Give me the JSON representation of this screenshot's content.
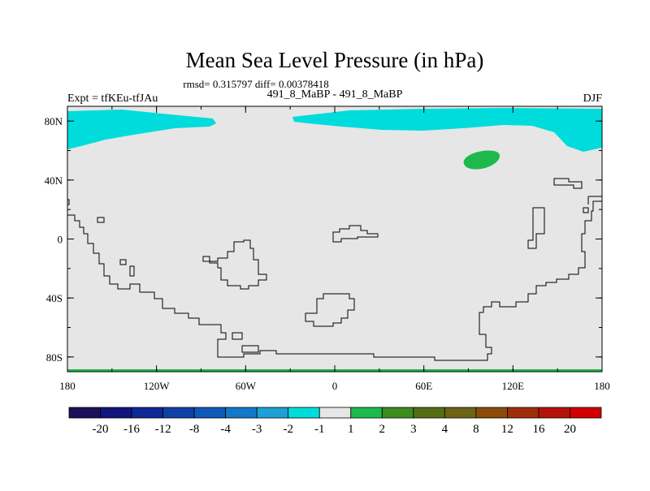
{
  "chart_data": {
    "type": "heatmap",
    "title": "Mean Sea Level Pressure (in hPa)",
    "stats_line": "rmsd= 0.315797 diff= 0.00378418",
    "subtitle_left": "Expt = tfKEu-tfJAu",
    "subtitle_center": "491_8_MaBP - 491_8_MaBP",
    "subtitle_right": "DJF",
    "x_ticks": [
      "180",
      "120W",
      "60W",
      "0",
      "60E",
      "120E",
      "180"
    ],
    "y_ticks": [
      "80N",
      "40N",
      "0",
      "40S",
      "80S"
    ],
    "xlim": [
      -180,
      180
    ],
    "ylim": [
      -90,
      90
    ],
    "colorbar": {
      "colors": [
        "#1e0f5a",
        "#14147d",
        "#0f2896",
        "#0f41a5",
        "#0f5ab9",
        "#1478c8",
        "#1ea0d7",
        "#00dcdc",
        "#e6e6e6",
        "#1eb94b",
        "#3c8c1e",
        "#556e14",
        "#6e6414",
        "#8c4b0a",
        "#a02d0a",
        "#b4140a",
        "#d20000"
      ],
      "labels": [
        "-20",
        "-16",
        "-12",
        "-8",
        "-4",
        "-3",
        "-2",
        "-1",
        "1",
        "2",
        "3",
        "4",
        "8",
        "12",
        "16",
        "20"
      ]
    },
    "field": {
      "background_level": "-1 to 1",
      "regions": [
        {
          "level": "-2 to -1",
          "description": "North Pacific / North America high latitudes (~60N-90N)"
        },
        {
          "level": "-2 to -1",
          "description": "Arctic Atlantic / Eurasia high latitudes (~60N-90N)"
        },
        {
          "level": "1 to 2",
          "description": "Central Asia (~50N, 90E)"
        }
      ]
    }
  }
}
